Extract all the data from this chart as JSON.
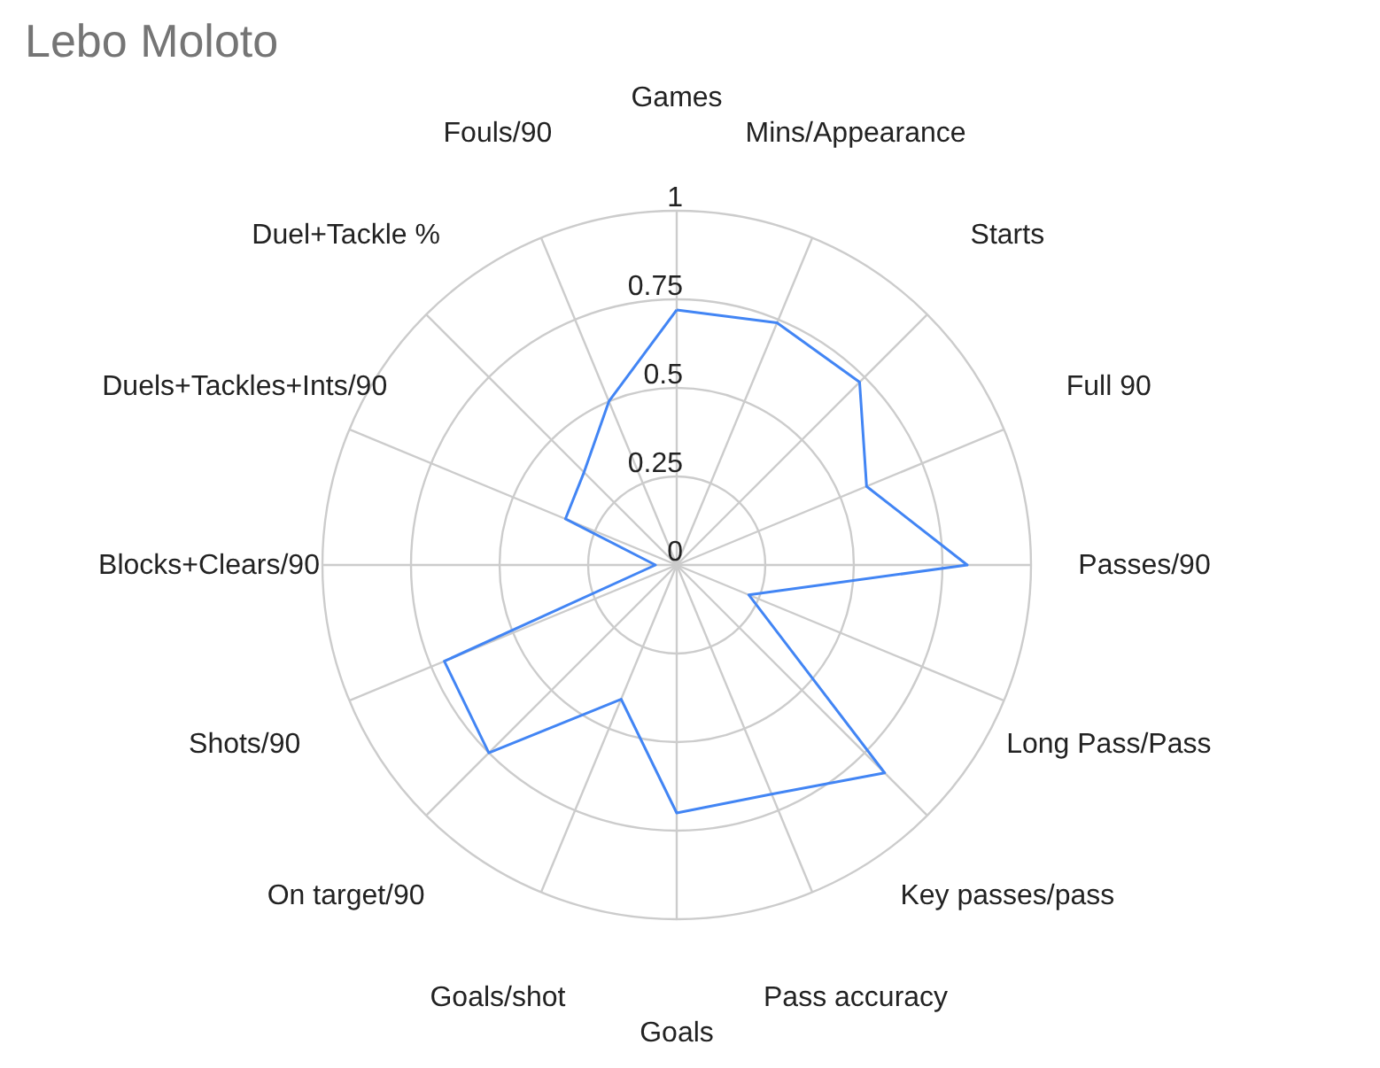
{
  "chart_data": {
    "type": "radar",
    "title": "Lebo Moloto",
    "categories": [
      "Games",
      "Mins/Appearance",
      "Starts",
      "Full 90",
      "Passes/90",
      "Long Pass/Pass",
      "Key passes/pass",
      "Pass accuracy",
      "Goals",
      "Goals/shot",
      "On target/90",
      "Shots/90",
      "Blocks+Clears/90",
      "Duels+Tackles+Ints/90",
      "Duel+Tackle %",
      "Fouls/90"
    ],
    "series": [
      {
        "color": "#4285f4",
        "values": [
          0.72,
          0.74,
          0.73,
          0.58,
          0.82,
          0.22,
          0.83,
          0.7,
          0.7,
          0.41,
          0.75,
          0.71,
          0.06,
          0.34,
          0.37,
          0.5
        ]
      }
    ],
    "ylim": [
      0,
      1
    ],
    "yticks": [
      0,
      0.25,
      0.5,
      0.75,
      1
    ],
    "grid": true
  }
}
